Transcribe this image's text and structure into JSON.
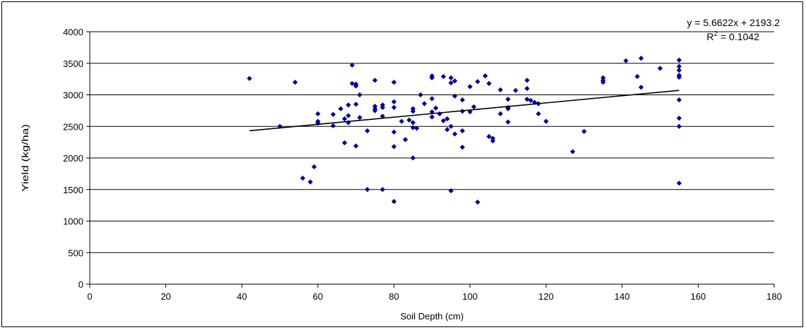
{
  "chart_data": {
    "type": "scatter",
    "xlabel": "Soil Depth (cm)",
    "ylabel": "Yield (kg/ha)",
    "xlim": [
      0,
      180
    ],
    "ylim": [
      0,
      4000
    ],
    "x_ticks": [
      0,
      20,
      40,
      60,
      80,
      100,
      120,
      140,
      160,
      180
    ],
    "y_ticks": [
      0,
      500,
      1000,
      1500,
      2000,
      2500,
      3000,
      3500,
      4000
    ],
    "horizontal_grid": true,
    "vertical_grid": false,
    "legend": "none",
    "marker": "diamond",
    "marker_color": "#00008b",
    "trendline": {
      "slope": 5.6622,
      "intercept": 2193.2,
      "x_range": [
        42,
        155
      ],
      "color": "#000000",
      "equation_label": "y = 5.6622x + 2193.2",
      "r2_prefix": "R",
      "r2_exponent": "2",
      "r2_value": " = 0.1042"
    },
    "points": [
      [
        42,
        3260
      ],
      [
        50,
        2500
      ],
      [
        54,
        3200
      ],
      [
        56,
        1680
      ],
      [
        58,
        1620
      ],
      [
        59,
        1860
      ],
      [
        60,
        2700
      ],
      [
        60,
        2580
      ],
      [
        60,
        2550
      ],
      [
        64,
        2690
      ],
      [
        64,
        2510
      ],
      [
        66,
        2780
      ],
      [
        67,
        2240
      ],
      [
        67,
        2620
      ],
      [
        68,
        2560
      ],
      [
        68,
        2670
      ],
      [
        68,
        2840
      ],
      [
        69,
        3470
      ],
      [
        69,
        3180
      ],
      [
        70,
        3170
      ],
      [
        70,
        3140
      ],
      [
        70,
        2850
      ],
      [
        70,
        2190
      ],
      [
        71,
        3000
      ],
      [
        71,
        2640
      ],
      [
        73,
        2430
      ],
      [
        73,
        1500
      ],
      [
        75,
        3230
      ],
      [
        75,
        2820
      ],
      [
        75,
        2780
      ],
      [
        75,
        2750
      ],
      [
        77,
        2840
      ],
      [
        77,
        2800
      ],
      [
        77,
        2660
      ],
      [
        77,
        1500
      ],
      [
        80,
        3200
      ],
      [
        80,
        2890
      ],
      [
        80,
        2800
      ],
      [
        80,
        2410
      ],
      [
        80,
        2180
      ],
      [
        80,
        1310
      ],
      [
        82,
        2580
      ],
      [
        83,
        2290
      ],
      [
        84,
        2600
      ],
      [
        85,
        2780
      ],
      [
        85,
        2740
      ],
      [
        85,
        2560
      ],
      [
        85,
        2480
      ],
      [
        85,
        2000
      ],
      [
        86,
        2470
      ],
      [
        87,
        3000
      ],
      [
        88,
        2860
      ],
      [
        90,
        3300
      ],
      [
        90,
        3270
      ],
      [
        90,
        2940
      ],
      [
        90,
        2730
      ],
      [
        90,
        2650
      ],
      [
        91,
        2790
      ],
      [
        92,
        2700
      ],
      [
        93,
        3290
      ],
      [
        93,
        2590
      ],
      [
        94,
        2620
      ],
      [
        94,
        2450
      ],
      [
        95,
        3270
      ],
      [
        95,
        3190
      ],
      [
        95,
        2500
      ],
      [
        95,
        1480
      ],
      [
        96,
        3220
      ],
      [
        96,
        2980
      ],
      [
        96,
        2380
      ],
      [
        98,
        2920
      ],
      [
        98,
        2740
      ],
      [
        98,
        2430
      ],
      [
        98,
        2170
      ],
      [
        100,
        3130
      ],
      [
        100,
        2730
      ],
      [
        101,
        2810
      ],
      [
        102,
        3210
      ],
      [
        102,
        1300
      ],
      [
        104,
        3300
      ],
      [
        105,
        3180
      ],
      [
        105,
        2340
      ],
      [
        106,
        2310
      ],
      [
        106,
        2270
      ],
      [
        108,
        3080
      ],
      [
        108,
        2700
      ],
      [
        110,
        2930
      ],
      [
        110,
        2800
      ],
      [
        110,
        2780
      ],
      [
        110,
        2570
      ],
      [
        112,
        3070
      ],
      [
        115,
        3230
      ],
      [
        115,
        3100
      ],
      [
        115,
        2930
      ],
      [
        116,
        2910
      ],
      [
        117,
        2880
      ],
      [
        118,
        2860
      ],
      [
        118,
        2700
      ],
      [
        120,
        2580
      ],
      [
        127,
        2100
      ],
      [
        130,
        2420
      ],
      [
        135,
        3270
      ],
      [
        135,
        3230
      ],
      [
        135,
        3200
      ],
      [
        141,
        3540
      ],
      [
        144,
        3290
      ],
      [
        145,
        3580
      ],
      [
        145,
        3120
      ],
      [
        150,
        3420
      ],
      [
        155,
        3550
      ],
      [
        155,
        3450
      ],
      [
        155,
        3390
      ],
      [
        155,
        3310
      ],
      [
        155,
        3280
      ],
      [
        155,
        2920
      ],
      [
        155,
        2630
      ],
      [
        155,
        2500
      ],
      [
        155,
        1600
      ]
    ]
  }
}
